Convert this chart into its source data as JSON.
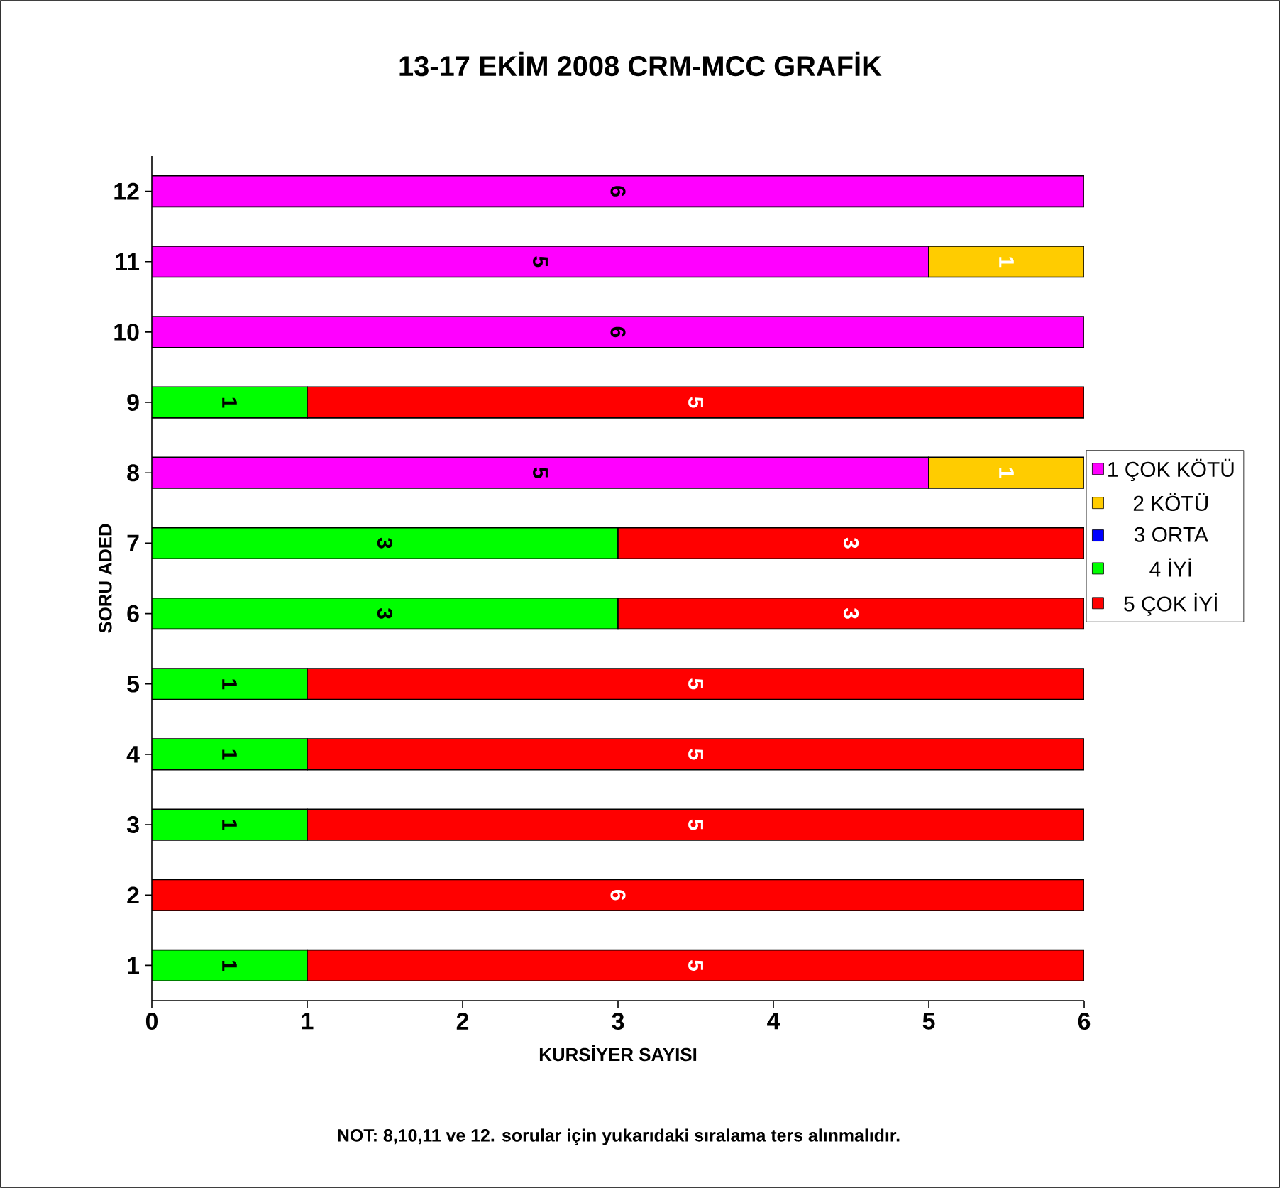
{
  "chart_data": {
    "type": "bar",
    "orientation": "horizontal",
    "stacked": true,
    "title": "13-17 EKİM  2008 CRM-MCC GRAFİK",
    "xlabel": "KURSİYER SAYISI",
    "ylabel": "SORU ADED",
    "annotations": [
      "NOT: 8,10,11 ve 12. sorular için yukarıdaki sıralama ters alınmalıdır."
    ],
    "categories": [
      "12",
      "11",
      "10",
      "9",
      "8",
      "7",
      "6",
      "5",
      "4",
      "3",
      "2",
      "1"
    ],
    "series": [
      {
        "name": "1 ÇOK KÖTÜ",
        "color": "#ff00ff",
        "values": [
          6,
          5,
          6,
          null,
          5,
          null,
          null,
          null,
          null,
          null,
          null,
          null
        ]
      },
      {
        "name": "2 KÖTÜ",
        "color": "#ffcc00",
        "values": [
          null,
          1,
          null,
          null,
          1,
          null,
          null,
          null,
          null,
          null,
          null,
          null
        ]
      },
      {
        "name": "3 ORTA",
        "color": "#0000ff",
        "values": [
          null,
          null,
          null,
          null,
          null,
          null,
          null,
          null,
          null,
          null,
          null,
          null
        ]
      },
      {
        "name": "4 İYİ",
        "color": "#00ff00",
        "values": [
          null,
          null,
          null,
          1,
          null,
          3,
          3,
          1,
          1,
          1,
          null,
          1
        ]
      },
      {
        "name": "5 ÇOK İYİ",
        "color": "#ff0000",
        "values": [
          null,
          null,
          null,
          5,
          null,
          3,
          3,
          5,
          5,
          5,
          6,
          5
        ]
      }
    ],
    "xlim": [
      0,
      6
    ],
    "xticks": [
      0,
      1,
      2,
      3,
      4,
      5,
      6
    ],
    "legend": "right",
    "data_labels": true,
    "grid": false
  }
}
